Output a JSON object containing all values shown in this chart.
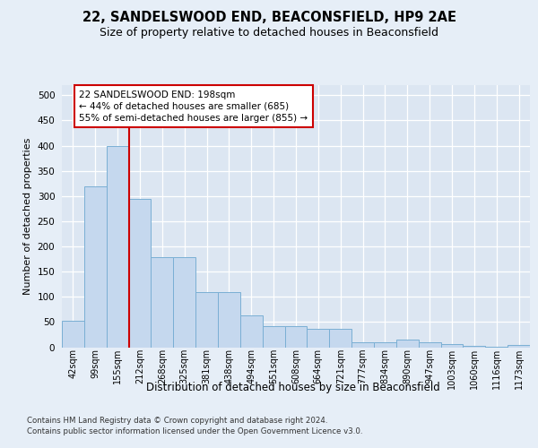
{
  "title": "22, SANDELSWOOD END, BEACONSFIELD, HP9 2AE",
  "subtitle": "Size of property relative to detached houses in Beaconsfield",
  "xlabel": "Distribution of detached houses by size in Beaconsfield",
  "ylabel": "Number of detached properties",
  "footer_line1": "Contains HM Land Registry data © Crown copyright and database right 2024.",
  "footer_line2": "Contains public sector information licensed under the Open Government Licence v3.0.",
  "bin_labels": [
    "42sqm",
    "99sqm",
    "155sqm",
    "212sqm",
    "268sqm",
    "325sqm",
    "381sqm",
    "438sqm",
    "494sqm",
    "551sqm",
    "608sqm",
    "664sqm",
    "721sqm",
    "777sqm",
    "834sqm",
    "890sqm",
    "947sqm",
    "1003sqm",
    "1060sqm",
    "1116sqm",
    "1173sqm"
  ],
  "bar_values": [
    53,
    320,
    400,
    295,
    178,
    178,
    110,
    110,
    63,
    42,
    42,
    37,
    37,
    10,
    10,
    15,
    10,
    6,
    3,
    1,
    5
  ],
  "bar_color": "#c5d8ee",
  "bar_edgecolor": "#7aafd4",
  "vline_x": 2.5,
  "vline_color": "#cc0000",
  "ann_line1": "22 SANDELSWOOD END: 198sqm",
  "ann_line2": "← 44% of detached houses are smaller (685)",
  "ann_line3": "55% of semi-detached houses are larger (855) →",
  "ann_box_edgecolor": "#cc0000",
  "ylim": [
    0,
    520
  ],
  "yticks": [
    0,
    50,
    100,
    150,
    200,
    250,
    300,
    350,
    400,
    450,
    500
  ],
  "bg_color": "#e6eef7",
  "plot_bg_color": "#dce6f2",
  "grid_color": "#ffffff",
  "title_fontsize": 10.5,
  "subtitle_fontsize": 9,
  "ylabel_fontsize": 8,
  "xlabel_fontsize": 8.5,
  "tick_fontsize": 7,
  "footer_fontsize": 6.2
}
